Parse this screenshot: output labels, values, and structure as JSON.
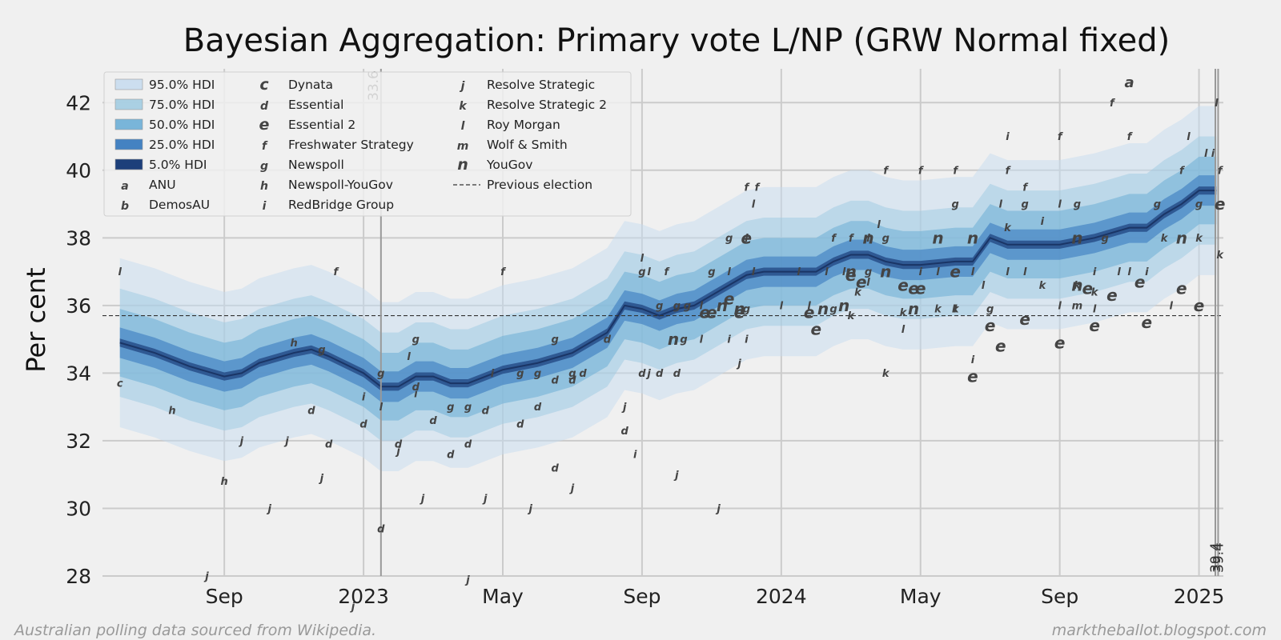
{
  "chart_data": {
    "type": "line",
    "title": "Bayesian Aggregation: Primary vote L/NP (GRW Normal fixed)",
    "ylabel": "Per cent",
    "xlabel": "",
    "ylim": [
      28,
      43
    ],
    "y_ticks": [
      28,
      30,
      32,
      34,
      36,
      38,
      40,
      42
    ],
    "x_ticks": [
      {
        "label": "Sep",
        "m": 3.0
      },
      {
        "label": "2023",
        "m": 7.0
      },
      {
        "label": "May",
        "m": 11.0
      },
      {
        "label": "Sep",
        "m": 15.0
      },
      {
        "label": "2024",
        "m": 19.0
      },
      {
        "label": "May",
        "m": 23.0
      },
      {
        "label": "Sep",
        "m": 27.0
      },
      {
        "label": "2025",
        "m": 31.0
      }
    ],
    "x_unit": "months since 2022-06-01",
    "xlim": [
      -0.5,
      31.7
    ],
    "previous_election": 35.7,
    "vertical_markers": [
      {
        "label": "33.6",
        "m": 7.5
      },
      {
        "label": "39.4",
        "m": 31.47
      },
      {
        "label": "39.4",
        "m": 31.55
      }
    ],
    "median_series": {
      "m": [
        0.0,
        1.0,
        2.0,
        3.0,
        3.5,
        4.0,
        5.0,
        5.5,
        6.0,
        7.0,
        7.5,
        8.0,
        8.5,
        9.0,
        9.5,
        10.0,
        11.0,
        12.0,
        13.0,
        14.0,
        14.5,
        15.0,
        15.5,
        16.0,
        16.5,
        17.0,
        17.5,
        18.0,
        18.5,
        19.0,
        20.0,
        20.5,
        21.0,
        21.5,
        22.0,
        22.5,
        23.0,
        24.0,
        24.5,
        25.0,
        25.5,
        26.0,
        27.0,
        27.5,
        28.0,
        29.0,
        29.5,
        30.0,
        30.5,
        31.0,
        31.5
      ],
      "y": [
        34.9,
        34.6,
        34.2,
        33.9,
        34.0,
        34.3,
        34.6,
        34.7,
        34.5,
        34.0,
        33.6,
        33.6,
        33.9,
        33.9,
        33.7,
        33.7,
        34.1,
        34.3,
        34.6,
        35.2,
        36.0,
        35.9,
        35.7,
        35.9,
        36.0,
        36.3,
        36.6,
        36.9,
        37.0,
        37.0,
        37.0,
        37.3,
        37.5,
        37.5,
        37.3,
        37.2,
        37.2,
        37.3,
        37.3,
        38.0,
        37.8,
        37.8,
        37.8,
        37.9,
        38.0,
        38.3,
        38.3,
        38.7,
        39.0,
        39.4,
        39.4
      ]
    },
    "bands": [
      {
        "label": "95.0% HDI",
        "half_width": 2.5,
        "color": "#c6dbef",
        "opacity": 0.5
      },
      {
        "label": "75.0% HDI",
        "half_width": 1.6,
        "color": "#9ecae1",
        "opacity": 0.5
      },
      {
        "label": "50.0% HDI",
        "half_width": 1.0,
        "color": "#6baed6",
        "opacity": 0.55
      },
      {
        "label": "25.0% HDI",
        "half_width": 0.45,
        "color": "#3a7bbf",
        "opacity": 0.6
      },
      {
        "label": "5.0% HDI",
        "half_width": 0.12,
        "color": "#1c3f7a",
        "opacity": 0.7
      }
    ],
    "pollsters": [
      {
        "marker": "a",
        "name": "ANU"
      },
      {
        "marker": "b",
        "name": "DemosAU"
      },
      {
        "marker": "c",
        "name": "Dynata"
      },
      {
        "marker": "d",
        "name": "Essential"
      },
      {
        "marker": "e",
        "name": "Essential 2"
      },
      {
        "marker": "f",
        "name": "Freshwater Strategy"
      },
      {
        "marker": "g",
        "name": "Newspoll"
      },
      {
        "marker": "h",
        "name": "Newspoll-YouGov"
      },
      {
        "marker": "i",
        "name": "RedBridge Group"
      },
      {
        "marker": "j",
        "name": "Resolve Strategic"
      },
      {
        "marker": "k",
        "name": "Resolve Strategic 2"
      },
      {
        "marker": "l",
        "name": "Roy Morgan"
      },
      {
        "marker": "m",
        "name": "Wolf & Smith"
      },
      {
        "marker": "n",
        "name": "YouGov"
      }
    ],
    "previous_election_label": "Previous election",
    "polls": [
      [
        "c",
        0.0,
        33.7
      ],
      [
        "l",
        0.0,
        37.0
      ],
      [
        "h",
        1.5,
        32.9
      ],
      [
        "j",
        2.5,
        28.0
      ],
      [
        "h",
        3.0,
        30.8
      ],
      [
        "j",
        3.5,
        32.0
      ],
      [
        "j",
        4.3,
        30.0
      ],
      [
        "j",
        4.8,
        32.0
      ],
      [
        "h",
        5.0,
        34.9
      ],
      [
        "d",
        5.5,
        32.9
      ],
      [
        "g",
        5.8,
        34.7
      ],
      [
        "f",
        6.2,
        37.0
      ],
      [
        "j",
        5.8,
        30.9
      ],
      [
        "d",
        6.0,
        31.9
      ],
      [
        "d",
        7.0,
        32.5
      ],
      [
        "j",
        6.7,
        27.1
      ],
      [
        "i",
        7.0,
        33.3
      ],
      [
        "g",
        7.5,
        34.0
      ],
      [
        "d",
        7.5,
        29.4
      ],
      [
        "l",
        7.5,
        33.0
      ],
      [
        "j",
        8.0,
        31.7
      ],
      [
        "d",
        8.0,
        31.9
      ],
      [
        "l",
        8.3,
        34.5
      ],
      [
        "g",
        8.5,
        35.0
      ],
      [
        "d",
        8.5,
        33.6
      ],
      [
        "i",
        8.5,
        33.4
      ],
      [
        "j",
        8.7,
        30.3
      ],
      [
        "d",
        9.0,
        32.6
      ],
      [
        "g",
        9.5,
        33.0
      ],
      [
        "d",
        9.5,
        31.6
      ],
      [
        "d",
        10.0,
        31.9
      ],
      [
        "g",
        10.0,
        33.0
      ],
      [
        "j",
        10.0,
        27.9
      ],
      [
        "j",
        10.5,
        30.3
      ],
      [
        "d",
        10.5,
        32.9
      ],
      [
        "i",
        10.7,
        34.0
      ],
      [
        "f",
        11.0,
        37.0
      ],
      [
        "g",
        11.5,
        34.0
      ],
      [
        "d",
        11.5,
        32.5
      ],
      [
        "j",
        11.8,
        30.0
      ],
      [
        "d",
        12.0,
        33.0
      ],
      [
        "g",
        12.0,
        34.0
      ],
      [
        "d",
        12.5,
        33.8
      ],
      [
        "g",
        12.5,
        35.0
      ],
      [
        "d",
        12.5,
        31.2
      ],
      [
        "d",
        13.0,
        33.8
      ],
      [
        "j",
        13.0,
        30.6
      ],
      [
        "g",
        13.0,
        34.0
      ],
      [
        "d",
        13.3,
        34.0
      ],
      [
        "d",
        14.0,
        35.0
      ],
      [
        "j",
        14.5,
        33.0
      ],
      [
        "d",
        14.5,
        32.3
      ],
      [
        "i",
        14.8,
        31.6
      ],
      [
        "g",
        15.0,
        37.0
      ],
      [
        "l",
        15.0,
        37.4
      ],
      [
        "d",
        15.0,
        34.0
      ],
      [
        "l",
        15.2,
        37.0
      ],
      [
        "j",
        15.2,
        34.0
      ],
      [
        "d",
        15.5,
        34.0
      ],
      [
        "g",
        15.5,
        36.0
      ],
      [
        "f",
        15.7,
        37.0
      ],
      [
        "n",
        15.9,
        35.0
      ],
      [
        "d",
        16.0,
        34.0
      ],
      [
        "g",
        16.2,
        35.0
      ],
      [
        "g",
        16.0,
        36.0
      ],
      [
        "j",
        16.0,
        31.0
      ],
      [
        "g",
        16.3,
        36.0
      ],
      [
        "l",
        16.7,
        35.0
      ],
      [
        "l",
        16.7,
        36.0
      ],
      [
        "e",
        16.8,
        35.8
      ],
      [
        "e",
        17.0,
        35.8
      ],
      [
        "g",
        17.0,
        37.0
      ],
      [
        "n",
        17.3,
        36.0
      ],
      [
        "j",
        17.2,
        30.0
      ],
      [
        "i",
        17.5,
        35.0
      ],
      [
        "l",
        17.5,
        37.0
      ],
      [
        "g",
        17.5,
        38.0
      ],
      [
        "e",
        17.5,
        36.2
      ],
      [
        "n",
        17.8,
        35.9
      ],
      [
        "i",
        18.0,
        35.0
      ],
      [
        "e",
        17.8,
        35.8
      ],
      [
        "g",
        18.0,
        35.9
      ],
      [
        "f",
        18.0,
        39.5
      ],
      [
        "l",
        18.0,
        38.0
      ],
      [
        "j",
        17.8,
        34.3
      ],
      [
        "l",
        18.2,
        37.0
      ],
      [
        "f",
        18.3,
        39.5
      ],
      [
        "l",
        18.2,
        39.0
      ],
      [
        "e",
        18.0,
        38.0
      ],
      [
        "l",
        19.0,
        36.0
      ],
      [
        "l",
        19.5,
        37.0
      ],
      [
        "l",
        19.8,
        36.0
      ],
      [
        "e",
        19.8,
        35.8
      ],
      [
        "e",
        20.0,
        35.3
      ],
      [
        "n",
        20.2,
        35.9
      ],
      [
        "g",
        20.5,
        35.9
      ],
      [
        "l",
        20.3,
        37.0
      ],
      [
        "f",
        20.5,
        38.0
      ],
      [
        "f",
        21.0,
        38.0
      ],
      [
        "n",
        21.0,
        37.0
      ],
      [
        "n",
        20.8,
        36.0
      ],
      [
        "l",
        20.8,
        37.0
      ],
      [
        "g",
        21.5,
        37.0
      ],
      [
        "e",
        21.3,
        36.7
      ],
      [
        "l",
        21.5,
        36.7
      ],
      [
        "k",
        21.0,
        35.7
      ],
      [
        "n",
        21.5,
        38.0
      ],
      [
        "k",
        21.2,
        36.4
      ],
      [
        "e",
        21.0,
        36.9
      ],
      [
        "l",
        21.8,
        38.4
      ],
      [
        "g",
        22.0,
        38.0
      ],
      [
        "l",
        21.5,
        38.0
      ],
      [
        "n",
        22.0,
        37.0
      ],
      [
        "f",
        22.0,
        40.0
      ],
      [
        "e",
        22.5,
        36.6
      ],
      [
        "k",
        22.0,
        34.0
      ],
      [
        "e",
        22.8,
        36.5
      ],
      [
        "k",
        22.5,
        35.8
      ],
      [
        "l",
        22.5,
        35.3
      ],
      [
        "n",
        22.8,
        35.9
      ],
      [
        "i",
        23.0,
        37.0
      ],
      [
        "f",
        23.0,
        40.0
      ],
      [
        "e",
        23.0,
        36.5
      ],
      [
        "n",
        23.5,
        38.0
      ],
      [
        "l",
        23.5,
        37.0
      ],
      [
        "k",
        23.5,
        35.9
      ],
      [
        "l",
        24.0,
        35.9
      ],
      [
        "e",
        24.0,
        37.0
      ],
      [
        "f",
        24.0,
        40.0
      ],
      [
        "g",
        24.0,
        39.0
      ],
      [
        "k",
        24.0,
        35.9
      ],
      [
        "n",
        24.5,
        38.0
      ],
      [
        "l",
        24.5,
        37.0
      ],
      [
        "i",
        24.5,
        34.4
      ],
      [
        "e",
        24.5,
        33.9
      ],
      [
        "l",
        24.8,
        36.6
      ],
      [
        "g",
        25.0,
        35.9
      ],
      [
        "e",
        25.0,
        35.4
      ],
      [
        "l",
        25.3,
        39.0
      ],
      [
        "f",
        25.5,
        40.0
      ],
      [
        "i",
        25.5,
        41.0
      ],
      [
        "k",
        25.5,
        38.3
      ],
      [
        "e",
        25.3,
        34.8
      ],
      [
        "l",
        25.5,
        37.0
      ],
      [
        "f",
        26.0,
        39.5
      ],
      [
        "l",
        26.0,
        37.0
      ],
      [
        "g",
        26.0,
        39.0
      ],
      [
        "e",
        26.0,
        35.6
      ],
      [
        "i",
        26.5,
        38.5
      ],
      [
        "k",
        26.5,
        36.6
      ],
      [
        "f",
        27.0,
        41.0
      ],
      [
        "l",
        27.0,
        39.0
      ],
      [
        "n",
        27.5,
        38.0
      ],
      [
        "e",
        27.0,
        34.9
      ],
      [
        "n",
        27.5,
        36.6
      ],
      [
        "k",
        27.5,
        36.6
      ],
      [
        "l",
        27.0,
        36.0
      ],
      [
        "g",
        27.5,
        39.0
      ],
      [
        "m",
        27.5,
        36.0
      ],
      [
        "e",
        27.8,
        36.5
      ],
      [
        "l",
        28.0,
        35.9
      ],
      [
        "k",
        28.0,
        36.4
      ],
      [
        "i",
        28.0,
        37.0
      ],
      [
        "e",
        28.0,
        35.4
      ],
      [
        "g",
        28.3,
        38.0
      ],
      [
        "l",
        28.7,
        37.0
      ],
      [
        "e",
        28.5,
        36.3
      ],
      [
        "f",
        28.5,
        42.0
      ],
      [
        "a",
        29.0,
        42.6
      ],
      [
        "f",
        29.0,
        41.0
      ],
      [
        "l",
        29.0,
        37.0
      ],
      [
        "e",
        29.3,
        36.7
      ],
      [
        "i",
        29.5,
        37.0
      ],
      [
        "e",
        29.5,
        35.5
      ],
      [
        "g",
        29.8,
        39.0
      ],
      [
        "k",
        30.0,
        38.0
      ],
      [
        "l",
        30.2,
        36.0
      ],
      [
        "n",
        30.5,
        38.0
      ],
      [
        "e",
        30.5,
        36.5
      ],
      [
        "f",
        30.5,
        40.0
      ],
      [
        "l",
        30.7,
        41.0
      ],
      [
        "e",
        31.0,
        36.0
      ],
      [
        "k",
        31.0,
        38.0
      ],
      [
        "g",
        31.0,
        39.0
      ],
      [
        "l",
        31.2,
        40.5
      ],
      [
        "i",
        31.4,
        40.5
      ],
      [
        "l",
        31.5,
        42.0
      ],
      [
        "f",
        31.6,
        40.0
      ],
      [
        "e",
        31.6,
        39.0
      ],
      [
        "k",
        31.6,
        37.5
      ]
    ]
  },
  "footer": {
    "left": "Australian polling data sourced from Wikipedia.",
    "right": "marktheballot.blogspot.com"
  }
}
